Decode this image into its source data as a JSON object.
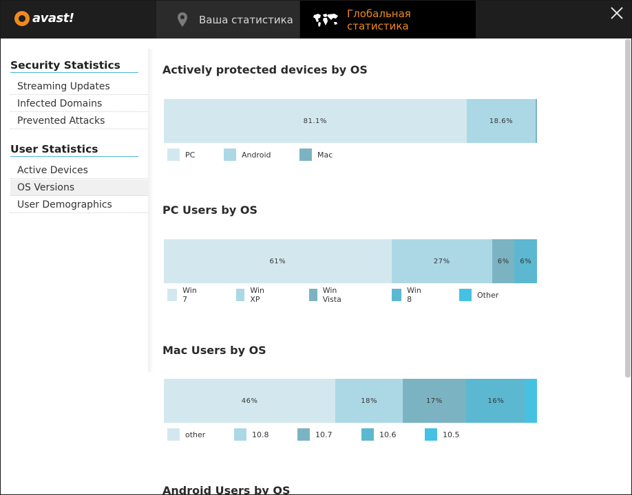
{
  "app": {
    "logo_text": "avast!"
  },
  "tabs": [
    {
      "label": "Ваша статистика"
    },
    {
      "label": "Глобальная статистика"
    }
  ],
  "sidebar": {
    "security_title": "Security Statistics",
    "security_items": [
      "Streaming Updates",
      "Infected Domains",
      "Prevented Attacks"
    ],
    "user_title": "User Statistics",
    "user_items": [
      "Active Devices",
      "OS Versions",
      "User Demographics"
    ],
    "active_item": "OS Versions"
  },
  "colors": {
    "c1": "#d3e8ee",
    "c2": "#acd8e6",
    "c3": "#7bb3c3",
    "c4": "#5cb8d0",
    "c5": "#45c1e3",
    "accent": "#f0891e"
  },
  "chart_data": [
    {
      "type": "bar",
      "title": "Actively protected devices by OS",
      "categories": [
        "PC",
        "Android",
        "Mac"
      ],
      "values": [
        81.1,
        18.6,
        0.3
      ],
      "labels": [
        "81.1%",
        "18.6%",
        ""
      ]
    },
    {
      "type": "bar",
      "title": "PC Users by OS",
      "categories": [
        "Win 7",
        "Win XP",
        "Win Vista",
        "Win 8",
        "Other"
      ],
      "values": [
        61,
        27,
        6,
        6,
        0
      ],
      "labels": [
        "61%",
        "27%",
        "6%",
        "6%",
        ""
      ]
    },
    {
      "type": "bar",
      "title": "Mac Users by OS",
      "categories": [
        "other",
        "10.8",
        "10.7",
        "10.6",
        "10.5"
      ],
      "values": [
        46,
        18,
        17,
        16,
        3
      ],
      "labels": [
        "46%",
        "18%",
        "17%",
        "16%",
        ""
      ]
    },
    {
      "type": "bar",
      "title": "Android Users by OS",
      "categories": [],
      "values": [],
      "labels": []
    }
  ]
}
